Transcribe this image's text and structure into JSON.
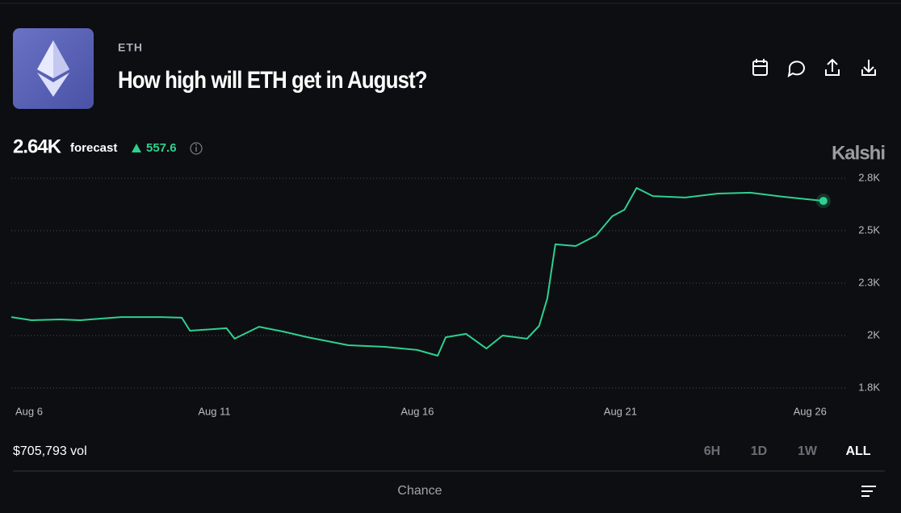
{
  "header": {
    "ticker": "ETH",
    "title": "How high will ETH get in August?"
  },
  "forecast": {
    "value": "2.64K",
    "label": "forecast",
    "change": "557.6"
  },
  "brand": "Kalshi",
  "chart_data": {
    "type": "line",
    "color": "#2fd08f",
    "x": [
      6.0,
      6.5,
      7.2,
      7.7,
      8.7,
      9.7,
      10.2,
      10.4,
      11.3,
      11.5,
      12.1,
      12.7,
      13.3,
      14.3,
      15.2,
      16.0,
      16.5,
      16.7,
      17.2,
      17.7,
      18.1,
      18.7,
      19.0,
      19.2,
      19.4,
      19.9,
      20.4,
      20.8,
      21.1,
      21.4,
      21.8,
      22.6,
      23.4,
      24.2,
      25.0,
      25.6,
      26.0
    ],
    "values": [
      2088,
      2073,
      2077,
      2073,
      2088,
      2088,
      2085,
      2023,
      2035,
      1985,
      2042,
      2019,
      1992,
      1954,
      1946,
      1931,
      1904,
      1992,
      2008,
      1938,
      2000,
      1985,
      2046,
      2177,
      2435,
      2427,
      2477,
      2569,
      2600,
      2704,
      2665,
      2658,
      2677,
      2681,
      2662,
      2650,
      2642
    ],
    "xlim": [
      6,
      26.5
    ],
    "xticks": [
      {
        "value": 6,
        "label": "Aug 6"
      },
      {
        "value": 11,
        "label": "Aug 11"
      },
      {
        "value": 16,
        "label": "Aug 16"
      },
      {
        "value": 21,
        "label": "Aug 21"
      },
      {
        "value": 26,
        "label": "Aug 26"
      }
    ],
    "ylim": [
      1750,
      2800
    ],
    "yticks": [
      {
        "value": 1750,
        "label": "1.8K"
      },
      {
        "value": 2000,
        "label": "2K"
      },
      {
        "value": 2250,
        "label": "2.3K"
      },
      {
        "value": 2500,
        "label": "2.5K"
      },
      {
        "value": 2750,
        "label": "2.8K"
      }
    ],
    "grid": true
  },
  "footer": {
    "volume": "$705,793 vol",
    "ranges": [
      "6H",
      "1D",
      "1W",
      "ALL"
    ],
    "tab": "Chance"
  }
}
